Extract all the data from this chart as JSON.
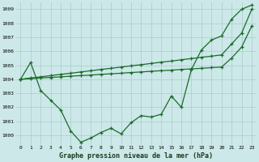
{
  "title": "Graphe pression niveau de la mer (hPa)",
  "bg_color": "#cce8e8",
  "grid_color": "#aacccc",
  "line_color": "#1a6b2a",
  "xlim": [
    -0.5,
    23.5
  ],
  "ylim": [
    999.3,
    1009.5
  ],
  "yticks": [
    1000,
    1001,
    1002,
    1003,
    1004,
    1005,
    1006,
    1007,
    1008,
    1009
  ],
  "xticks": [
    0,
    1,
    2,
    3,
    4,
    5,
    6,
    7,
    8,
    9,
    10,
    11,
    12,
    13,
    14,
    15,
    16,
    17,
    18,
    19,
    20,
    21,
    22,
    23
  ],
  "hours": [
    0,
    1,
    2,
    3,
    4,
    5,
    6,
    7,
    8,
    9,
    10,
    11,
    12,
    13,
    14,
    15,
    16,
    17,
    18,
    19,
    20,
    21,
    22,
    23
  ],
  "series_curve": [
    1004.0,
    1005.2,
    1003.2,
    1002.5,
    1001.8,
    1000.3,
    999.5,
    999.8,
    1000.2,
    1000.5,
    1000.1,
    1000.9,
    1001.4,
    1001.3,
    1001.5,
    1002.8,
    1002.0,
    1004.7,
    1006.1,
    1006.8,
    1007.1,
    1008.3,
    1009.0,
    1009.3
  ],
  "series_line1": [
    1004.0,
    1004.04,
    1004.09,
    1004.13,
    1004.17,
    1004.22,
    1004.26,
    1004.3,
    1004.35,
    1004.39,
    1004.43,
    1004.48,
    1004.52,
    1004.57,
    1004.61,
    1004.65,
    1004.7,
    1004.74,
    1004.78,
    1004.83,
    1004.87,
    1005.52,
    1006.3,
    1007.8
  ],
  "series_line2": [
    1004.0,
    1004.09,
    1004.17,
    1004.26,
    1004.35,
    1004.43,
    1004.52,
    1004.61,
    1004.7,
    1004.78,
    1004.87,
    1004.96,
    1005.04,
    1005.13,
    1005.22,
    1005.3,
    1005.39,
    1005.48,
    1005.57,
    1005.65,
    1005.74,
    1006.52,
    1007.3,
    1009.0
  ]
}
